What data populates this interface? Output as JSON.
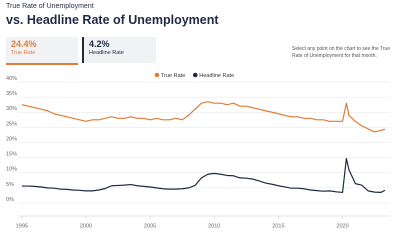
{
  "header": {
    "kicker": "True Rate of Unemployment",
    "title": "vs. Headline Rate of Unemployment"
  },
  "stats": [
    {
      "value": "24.4%",
      "label": "True Rate"
    },
    {
      "value": "4.2%",
      "label": "Headline Rate"
    }
  ],
  "note": "Select any point on the chart to see the True Rate of Unemployment for that month.",
  "chart_data": {
    "type": "line",
    "x": [
      1995,
      1995.5,
      1996,
      1996.5,
      1997,
      1997.5,
      1998,
      1998.5,
      1999,
      1999.5,
      2000,
      2000.5,
      2001,
      2001.5,
      2002,
      2002.5,
      2003,
      2003.5,
      2004,
      2004.5,
      2005,
      2005.5,
      2006,
      2006.5,
      2007,
      2007.5,
      2008,
      2008.5,
      2009,
      2009.5,
      2010,
      2010.5,
      2011,
      2011.5,
      2012,
      2012.5,
      2013,
      2013.5,
      2014,
      2014.5,
      2015,
      2015.5,
      2016,
      2016.5,
      2017,
      2017.5,
      2018,
      2018.5,
      2019,
      2019.5,
      2020,
      2020.3,
      2020.5,
      2021,
      2021.5,
      2022,
      2022.5,
      2023,
      2023.3
    ],
    "series": [
      {
        "name": "True Rate",
        "color": "#e07b39",
        "values": [
          32.5,
          32,
          31.5,
          31,
          30.5,
          29.5,
          29,
          28.5,
          28,
          27.5,
          27,
          27.5,
          27.5,
          28,
          28.5,
          28,
          28,
          28.5,
          28,
          28,
          27.5,
          28,
          27.5,
          27.5,
          28,
          27.5,
          29,
          31,
          33,
          33.5,
          33,
          33,
          32.5,
          33,
          32,
          32,
          31.5,
          31,
          30.5,
          30,
          29.5,
          29,
          28.5,
          28.5,
          28,
          28,
          27.5,
          27.5,
          27,
          27,
          27,
          33,
          29,
          27,
          25.5,
          24.5,
          23.5,
          24,
          24.4
        ]
      },
      {
        "name": "Headline Rate",
        "color": "#1f2a44",
        "values": [
          5.6,
          5.6,
          5.5,
          5.3,
          5.0,
          4.9,
          4.6,
          4.5,
          4.3,
          4.2,
          4.0,
          4.0,
          4.3,
          4.8,
          5.7,
          5.8,
          5.9,
          6.1,
          5.7,
          5.5,
          5.3,
          5.0,
          4.7,
          4.6,
          4.6,
          4.7,
          5.0,
          5.8,
          8.3,
          9.5,
          9.8,
          9.5,
          9.1,
          9.0,
          8.3,
          8.2,
          7.9,
          7.3,
          6.6,
          6.2,
          5.7,
          5.3,
          4.9,
          4.9,
          4.7,
          4.3,
          4.1,
          3.9,
          4.0,
          3.7,
          3.5,
          14.7,
          11.0,
          6.4,
          5.9,
          4.0,
          3.6,
          3.5,
          4.2
        ]
      }
    ],
    "xlim": [
      1994.7,
      2023.7
    ],
    "xticks": [
      1995,
      2000,
      2005,
      2010,
      2015,
      2020
    ],
    "ylim": [
      0,
      40
    ],
    "yticks": [
      {
        "value": 0,
        "label": "0%"
      },
      {
        "value": 5,
        "label": "5%"
      },
      {
        "value": 10,
        "label": "10%"
      },
      {
        "value": 15,
        "label": "15%"
      },
      {
        "value": 20,
        "label": "20%"
      },
      {
        "value": 25,
        "label": "25%"
      },
      {
        "value": 30,
        "label": "30%"
      },
      {
        "value": 35,
        "label": "35%"
      },
      {
        "value": 40,
        "label": "40%"
      }
    ],
    "grid": true
  }
}
